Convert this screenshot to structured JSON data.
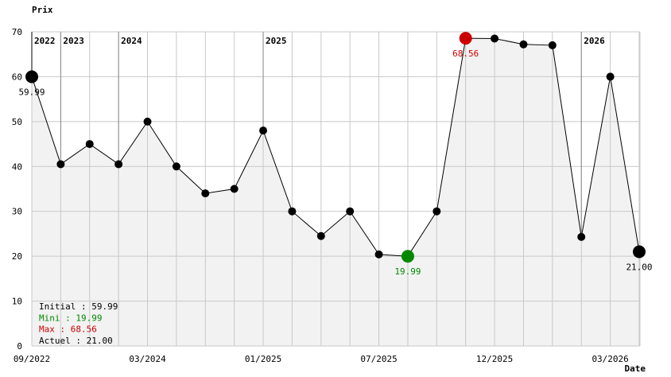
{
  "chart_data": {
    "type": "line",
    "ylabel": "Prix",
    "xlabel": "Date",
    "ylim": [
      0,
      70
    ],
    "yticks": [
      0,
      10,
      20,
      30,
      40,
      50,
      60,
      70
    ],
    "grid": true,
    "fill": "#f2f2f2",
    "values": [
      59.99,
      40.5,
      45,
      40.5,
      50,
      40,
      34,
      35,
      48,
      30,
      24.5,
      30,
      20.4,
      19.99,
      30,
      68.56,
      68.5,
      67.2,
      67,
      24.3,
      60,
      21.0
    ],
    "xtick_labels": [
      {
        "index": 0,
        "label": "09/2022"
      },
      {
        "index": 4,
        "label": "03/2024"
      },
      {
        "index": 8,
        "label": "01/2025"
      },
      {
        "index": 12,
        "label": "07/2025"
      },
      {
        "index": 16,
        "label": "12/2025"
      },
      {
        "index": 20,
        "label": "03/2026"
      }
    ],
    "year_markers": [
      {
        "index": 0,
        "label": "2022"
      },
      {
        "index": 1,
        "label": "2023"
      },
      {
        "index": 3,
        "label": "2024"
      },
      {
        "index": 8,
        "label": "2025"
      },
      {
        "index": 19,
        "label": "2026"
      }
    ],
    "highlights": [
      {
        "index": 0,
        "label": "59.99",
        "color": "#000000"
      },
      {
        "index": 13,
        "label": "19.99",
        "color": "#008800"
      },
      {
        "index": 15,
        "label": "68.56",
        "color": "#cc0000"
      },
      {
        "index": 21,
        "label": "21.00",
        "color": "#000000"
      }
    ],
    "legend": [
      {
        "text": "Initial : 59.99",
        "color": "#000000"
      },
      {
        "text": "Mini : 19.99",
        "color": "#008800"
      },
      {
        "text": "Max : 68.56",
        "color": "#cc0000"
      },
      {
        "text": "Actuel : 21.00",
        "color": "#000000"
      }
    ]
  }
}
